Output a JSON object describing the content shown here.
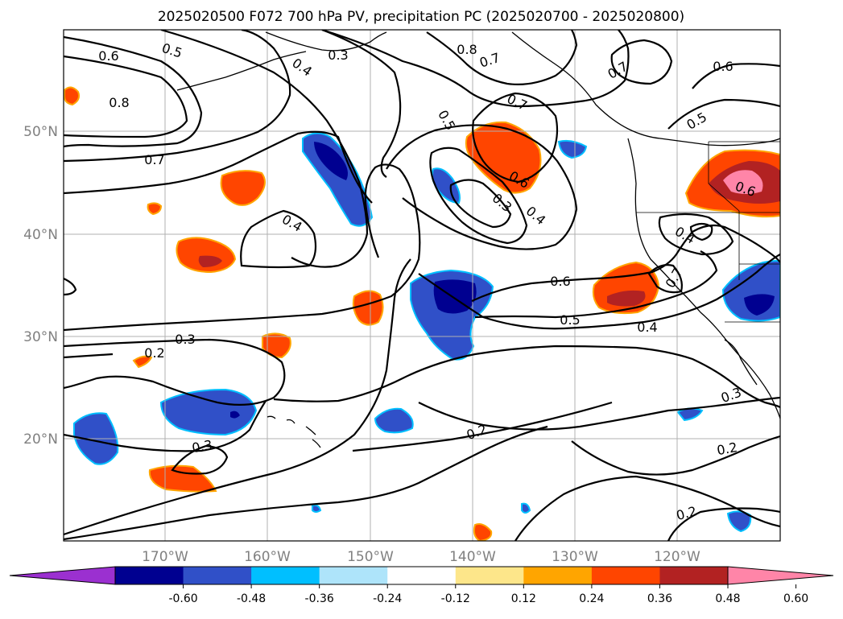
{
  "title": "2025020500 F072 700 hPa PV, precipitation PC (2025020700 - 2025020800)",
  "map": {
    "lat_labels": [
      "50°N",
      "40°N",
      "30°N",
      "20°N"
    ],
    "lon_labels": [
      "170°W",
      "160°W",
      "150°W",
      "140°W",
      "130°W",
      "120°W"
    ]
  },
  "contour_labels": [
    "0.6",
    "0.5",
    "0.4",
    "0.3",
    "0.8",
    "0.7",
    "0.8",
    "0.7",
    "0.7",
    "0.6",
    "0.5",
    "0.7",
    "0.5",
    "0.6",
    "0.3",
    "0.4",
    "0.4",
    "0.6",
    "0.4",
    "0.7",
    "0.6",
    "0.5",
    "0.4",
    "0.3",
    "0.2",
    "0.3",
    "0.2",
    "0.3",
    "0.2",
    "0.2"
  ],
  "colorbar": {
    "colors": [
      "#9b30d0",
      "#000090",
      "#3050c8",
      "#00bfff",
      "#aee4fa",
      "#ffffff",
      "#fde68a",
      "#ffa500",
      "#ff4500",
      "#b22222",
      "#ff85a8"
    ],
    "tick_labels": [
      "-0.60",
      "-0.48",
      "-0.36",
      "-0.24",
      "-0.12",
      "0.12",
      "0.24",
      "0.36",
      "0.48",
      "0.60"
    ]
  }
}
